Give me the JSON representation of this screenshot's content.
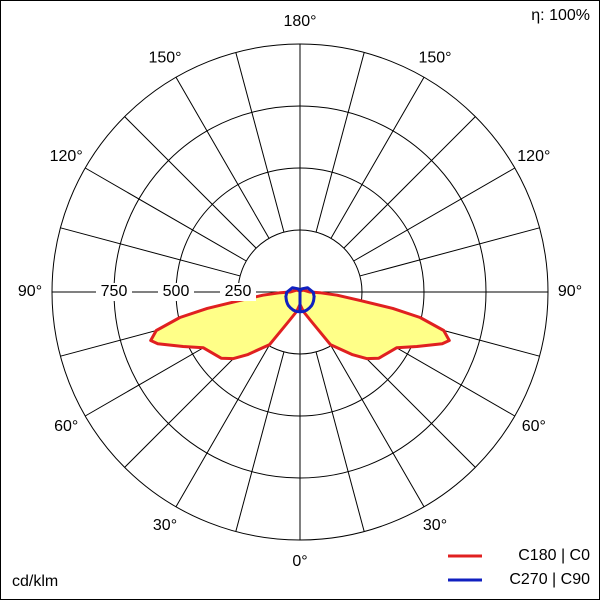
{
  "chart_data": {
    "type": "polar",
    "note_top_right": "η: 100%",
    "unit_label": "cd/klm",
    "rlim": [
      0,
      1000
    ],
    "rticks": [
      250,
      500,
      750
    ],
    "angle_ticks": [
      {
        "value": 0,
        "label": "0°"
      },
      {
        "value": 30,
        "label": "30°"
      },
      {
        "value": 60,
        "label": "60°"
      },
      {
        "value": 90,
        "label": "90°"
      },
      {
        "value": 120,
        "label": "120°"
      },
      {
        "value": 150,
        "label": "150°"
      },
      {
        "value": 180,
        "label": "180°"
      }
    ],
    "angles": [
      0,
      10,
      20,
      30,
      40,
      45,
      50,
      55,
      60,
      65,
      70,
      72,
      75,
      78,
      80,
      82,
      85,
      88,
      90,
      120,
      150,
      180
    ],
    "fill_color": "#ffff88",
    "series": [
      {
        "name": "C180 | C0",
        "color": "#e02020",
        "values": [
          50,
          80,
          120,
          245,
          330,
          380,
          415,
          430,
          450,
          520,
          610,
          633,
          600,
          495,
          380,
          244,
          150,
          80,
          40,
          15,
          5,
          0
        ]
      },
      {
        "name": "C270 | C90",
        "color": "#1020c0",
        "values": [
          80,
          80,
          78,
          75,
          72,
          70,
          68,
          66,
          64,
          62,
          60,
          60,
          58,
          57,
          56,
          55,
          55,
          54,
          52,
          35,
          15,
          5
        ]
      }
    ]
  }
}
